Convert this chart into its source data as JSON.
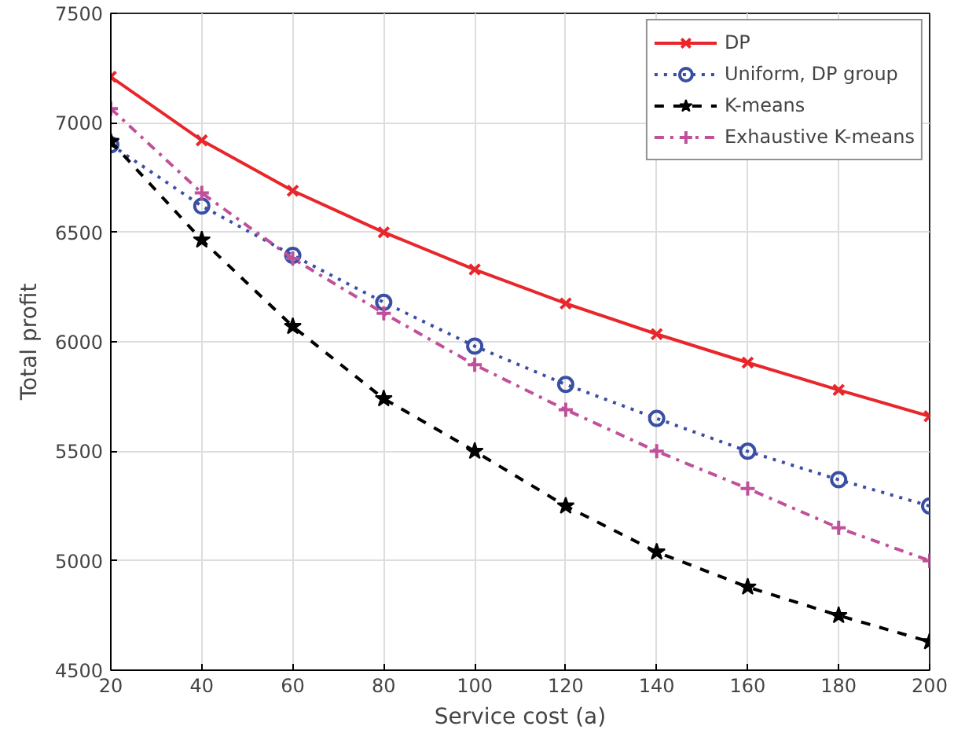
{
  "chart_data": {
    "type": "line",
    "xlabel": "Service cost (a)",
    "ylabel": "Total profit",
    "x": [
      20,
      40,
      60,
      80,
      100,
      120,
      140,
      160,
      180,
      200
    ],
    "xlim": [
      20,
      200
    ],
    "xticks": [
      20,
      40,
      60,
      80,
      100,
      120,
      140,
      160,
      180,
      200
    ],
    "ylim": [
      4500,
      7500
    ],
    "yticks": [
      4500,
      5000,
      5500,
      6000,
      6500,
      7000,
      7500
    ],
    "grid": true,
    "legend": "top right",
    "series": [
      {
        "name": "DP",
        "color": "#e8262b",
        "marker": "x",
        "line_style": "solid",
        "values": [
          7210,
          6920,
          6690,
          6500,
          6330,
          6175,
          6035,
          5905,
          5780,
          5660
        ]
      },
      {
        "name": "Uniform, DP group",
        "color": "#3a4fa3",
        "marker": "circle",
        "line_style": "dotted",
        "values": [
          6900,
          6620,
          6395,
          6180,
          5980,
          5805,
          5650,
          5500,
          5370,
          5250
        ]
      },
      {
        "name": "K-means",
        "color": "#000000",
        "marker": "star",
        "line_style": "dashed",
        "values": [
          6915,
          6465,
          6070,
          5740,
          5500,
          5250,
          5040,
          4880,
          4750,
          4630
        ]
      },
      {
        "name": "Exhaustive K-means",
        "color": "#c0509a",
        "marker": "cross",
        "line_style": "dashdot",
        "values": [
          7065,
          6680,
          6380,
          6130,
          5895,
          5690,
          5500,
          5330,
          5150,
          5000
        ]
      }
    ]
  }
}
